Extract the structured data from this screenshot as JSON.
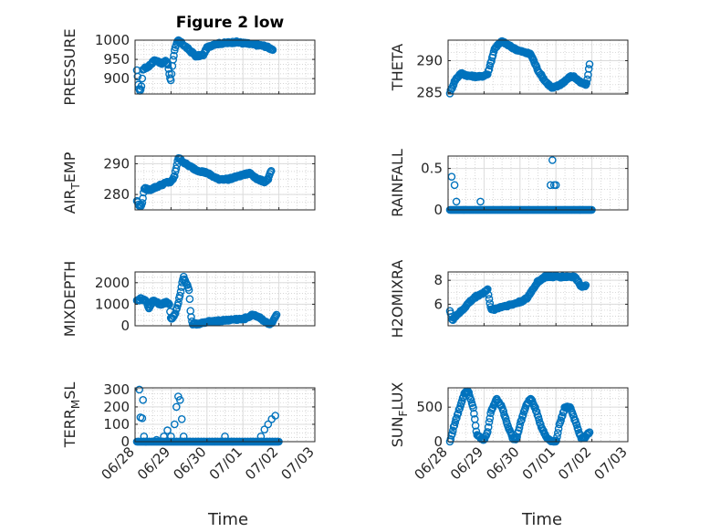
{
  "title": "Figure 2 low",
  "marker_color": "#0072bd",
  "x_ticks": [
    "06/28",
    "06/29",
    "06/30",
    "07/01",
    "07/02",
    "07/03"
  ],
  "x_range": [
    0,
    5
  ],
  "x_label": "Time",
  "chart_data": [
    {
      "type": "scatter",
      "ylabel": "PRESSURE",
      "ylim": [
        860,
        1000
      ],
      "yticks": [
        900,
        950,
        1000
      ],
      "anchors": [
        [
          0.05,
          920
        ],
        [
          0.1,
          880
        ],
        [
          0.13,
          865
        ],
        [
          0.18,
          882
        ],
        [
          0.22,
          925
        ],
        [
          0.35,
          930
        ],
        [
          0.55,
          948
        ],
        [
          0.75,
          940
        ],
        [
          0.85,
          945
        ],
        [
          0.92,
          935
        ],
        [
          0.96,
          905
        ],
        [
          1.0,
          895
        ],
        [
          1.03,
          930
        ],
        [
          1.1,
          975
        ],
        [
          1.2,
          1000
        ],
        [
          1.3,
          992
        ],
        [
          1.5,
          975
        ],
        [
          1.7,
          958
        ],
        [
          1.9,
          962
        ],
        [
          2.0,
          980
        ],
        [
          2.2,
          990
        ],
        [
          2.8,
          995
        ],
        [
          3.2,
          990
        ],
        [
          3.6,
          985
        ],
        [
          3.85,
          975
        ]
      ]
    },
    {
      "type": "scatter",
      "ylabel": "THETA",
      "ylim": [
        284.8,
        293.2
      ],
      "yticks": [
        285,
        290
      ],
      "anchors": [
        [
          0.05,
          285
        ],
        [
          0.2,
          287
        ],
        [
          0.35,
          288
        ],
        [
          0.6,
          287.6
        ],
        [
          0.9,
          287.5
        ],
        [
          1.1,
          287.9
        ],
        [
          1.3,
          292
        ],
        [
          1.5,
          293
        ],
        [
          1.8,
          292
        ],
        [
          2.0,
          291.5
        ],
        [
          2.3,
          291
        ],
        [
          2.5,
          288.5
        ],
        [
          2.7,
          286.8
        ],
        [
          2.9,
          285.7
        ],
        [
          3.1,
          286.2
        ],
        [
          3.4,
          287.5
        ],
        [
          3.5,
          287.5
        ],
        [
          3.7,
          286.5
        ],
        [
          3.85,
          286.3
        ],
        [
          3.95,
          290
        ]
      ]
    },
    {
      "type": "scatter",
      "ylabel": "AIR_TEMP",
      "ylim": [
        275,
        292.5
      ],
      "yticks": [
        280,
        290
      ],
      "anchors": [
        [
          0.05,
          278
        ],
        [
          0.12,
          276
        ],
        [
          0.2,
          277
        ],
        [
          0.25,
          282
        ],
        [
          0.4,
          281.5
        ],
        [
          0.7,
          283
        ],
        [
          0.9,
          284
        ],
        [
          1.0,
          284
        ],
        [
          1.1,
          286
        ],
        [
          1.2,
          292
        ],
        [
          1.4,
          290
        ],
        [
          1.7,
          288
        ],
        [
          2.0,
          287
        ],
        [
          2.3,
          285
        ],
        [
          2.6,
          285
        ],
        [
          2.9,
          286
        ],
        [
          3.2,
          287
        ],
        [
          3.4,
          285
        ],
        [
          3.6,
          284.2
        ],
        [
          3.7,
          285
        ],
        [
          3.8,
          288
        ]
      ]
    },
    {
      "type": "scatter",
      "ylabel": "RAINFALL",
      "ylim": [
        0,
        0.65
      ],
      "yticks": [
        0,
        0.5
      ],
      "ytick_labels": [
        "0",
        "0.5"
      ],
      "anchors": [
        [
          0.05,
          0
        ],
        [
          4.0,
          0
        ]
      ],
      "extra": [
        [
          0.1,
          0.4
        ],
        [
          0.18,
          0.3
        ],
        [
          0.23,
          0.1
        ],
        [
          0.9,
          0.1
        ],
        [
          2.85,
          0.3
        ],
        [
          2.9,
          0.6
        ],
        [
          2.95,
          0.3
        ],
        [
          3.0,
          0.3
        ]
      ]
    },
    {
      "type": "scatter",
      "ylabel": "MIXDEPTH",
      "ylim": [
        0,
        2500
      ],
      "yticks": [
        0,
        1000,
        2000
      ],
      "anchors": [
        [
          0.05,
          1150
        ],
        [
          0.15,
          1250
        ],
        [
          0.3,
          1150
        ],
        [
          0.4,
          800
        ],
        [
          0.5,
          1200
        ],
        [
          0.7,
          1000
        ],
        [
          0.9,
          1100
        ],
        [
          0.95,
          1000
        ],
        [
          1.0,
          300
        ],
        [
          1.1,
          500
        ],
        [
          1.2,
          1000
        ],
        [
          1.3,
          1900
        ],
        [
          1.35,
          2300
        ],
        [
          1.42,
          2000
        ],
        [
          1.5,
          1700
        ],
        [
          1.55,
          500
        ],
        [
          1.6,
          80
        ],
        [
          1.8,
          100
        ],
        [
          2.1,
          200
        ],
        [
          2.5,
          250
        ],
        [
          2.8,
          300
        ],
        [
          3.0,
          300
        ],
        [
          3.3,
          520
        ],
        [
          3.5,
          350
        ],
        [
          3.7,
          80
        ],
        [
          3.8,
          100
        ],
        [
          3.95,
          520
        ]
      ]
    },
    {
      "type": "scatter",
      "ylabel": "H2OMIXRA",
      "ylim": [
        4.2,
        8.7
      ],
      "yticks": [
        6,
        8
      ],
      "anchors": [
        [
          0.05,
          5.5
        ],
        [
          0.12,
          4.6
        ],
        [
          0.2,
          5
        ],
        [
          0.4,
          5.5
        ],
        [
          0.6,
          6.2
        ],
        [
          0.8,
          6.7
        ],
        [
          0.95,
          6.9
        ],
        [
          1.1,
          7.2
        ],
        [
          1.2,
          5.5
        ],
        [
          1.5,
          5.8
        ],
        [
          1.8,
          6
        ],
        [
          2.0,
          6.2
        ],
        [
          2.2,
          6.5
        ],
        [
          2.3,
          7
        ],
        [
          2.5,
          7.9
        ],
        [
          2.7,
          8.3
        ],
        [
          3.0,
          8.3
        ],
        [
          3.3,
          8.3
        ],
        [
          3.5,
          8.3
        ],
        [
          3.6,
          8
        ],
        [
          3.7,
          7.5
        ],
        [
          3.85,
          7.6
        ]
      ]
    },
    {
      "type": "scatter",
      "ylabel": "TERR_MSL",
      "ylim": [
        0,
        310
      ],
      "yticks": [
        0,
        100,
        200,
        300
      ],
      "anchors": [
        [
          0.05,
          0
        ],
        [
          4.0,
          0
        ]
      ],
      "extra": [
        [
          0.12,
          300
        ],
        [
          0.15,
          140
        ],
        [
          0.2,
          135
        ],
        [
          0.22,
          240
        ],
        [
          0.25,
          30
        ],
        [
          0.3,
          0
        ],
        [
          0.6,
          10
        ],
        [
          0.8,
          30
        ],
        [
          0.9,
          65
        ],
        [
          1.0,
          30
        ],
        [
          1.1,
          100
        ],
        [
          1.15,
          200
        ],
        [
          1.2,
          260
        ],
        [
          1.25,
          240
        ],
        [
          1.3,
          130
        ],
        [
          1.35,
          30
        ],
        [
          2.5,
          30
        ],
        [
          3.5,
          30
        ],
        [
          3.6,
          70
        ],
        [
          3.7,
          100
        ],
        [
          3.8,
          130
        ],
        [
          3.9,
          150
        ]
      ]
    },
    {
      "type": "scatter",
      "ylabel": "SUN_FLUX",
      "ylim": [
        0,
        780
      ],
      "yticks": [
        0,
        500
      ],
      "anchors": [
        [
          0.05,
          0
        ],
        [
          0.15,
          200
        ],
        [
          0.3,
          450
        ],
        [
          0.45,
          700
        ],
        [
          0.55,
          750
        ],
        [
          0.7,
          500
        ],
        [
          0.8,
          100
        ],
        [
          0.9,
          50
        ],
        [
          1.0,
          20
        ],
        [
          1.1,
          150
        ],
        [
          1.2,
          450
        ],
        [
          1.35,
          620
        ],
        [
          1.5,
          500
        ],
        [
          1.65,
          250
        ],
        [
          1.8,
          50
        ],
        [
          1.9,
          40
        ],
        [
          2.0,
          250
        ],
        [
          2.15,
          500
        ],
        [
          2.3,
          630
        ],
        [
          2.45,
          450
        ],
        [
          2.6,
          200
        ],
        [
          2.75,
          50
        ],
        [
          2.9,
          0
        ],
        [
          3.0,
          0
        ],
        [
          3.1,
          250
        ],
        [
          3.25,
          500
        ],
        [
          3.4,
          500
        ],
        [
          3.5,
          350
        ],
        [
          3.6,
          200
        ],
        [
          3.7,
          50
        ],
        [
          3.8,
          60
        ],
        [
          3.95,
          150
        ]
      ]
    }
  ]
}
